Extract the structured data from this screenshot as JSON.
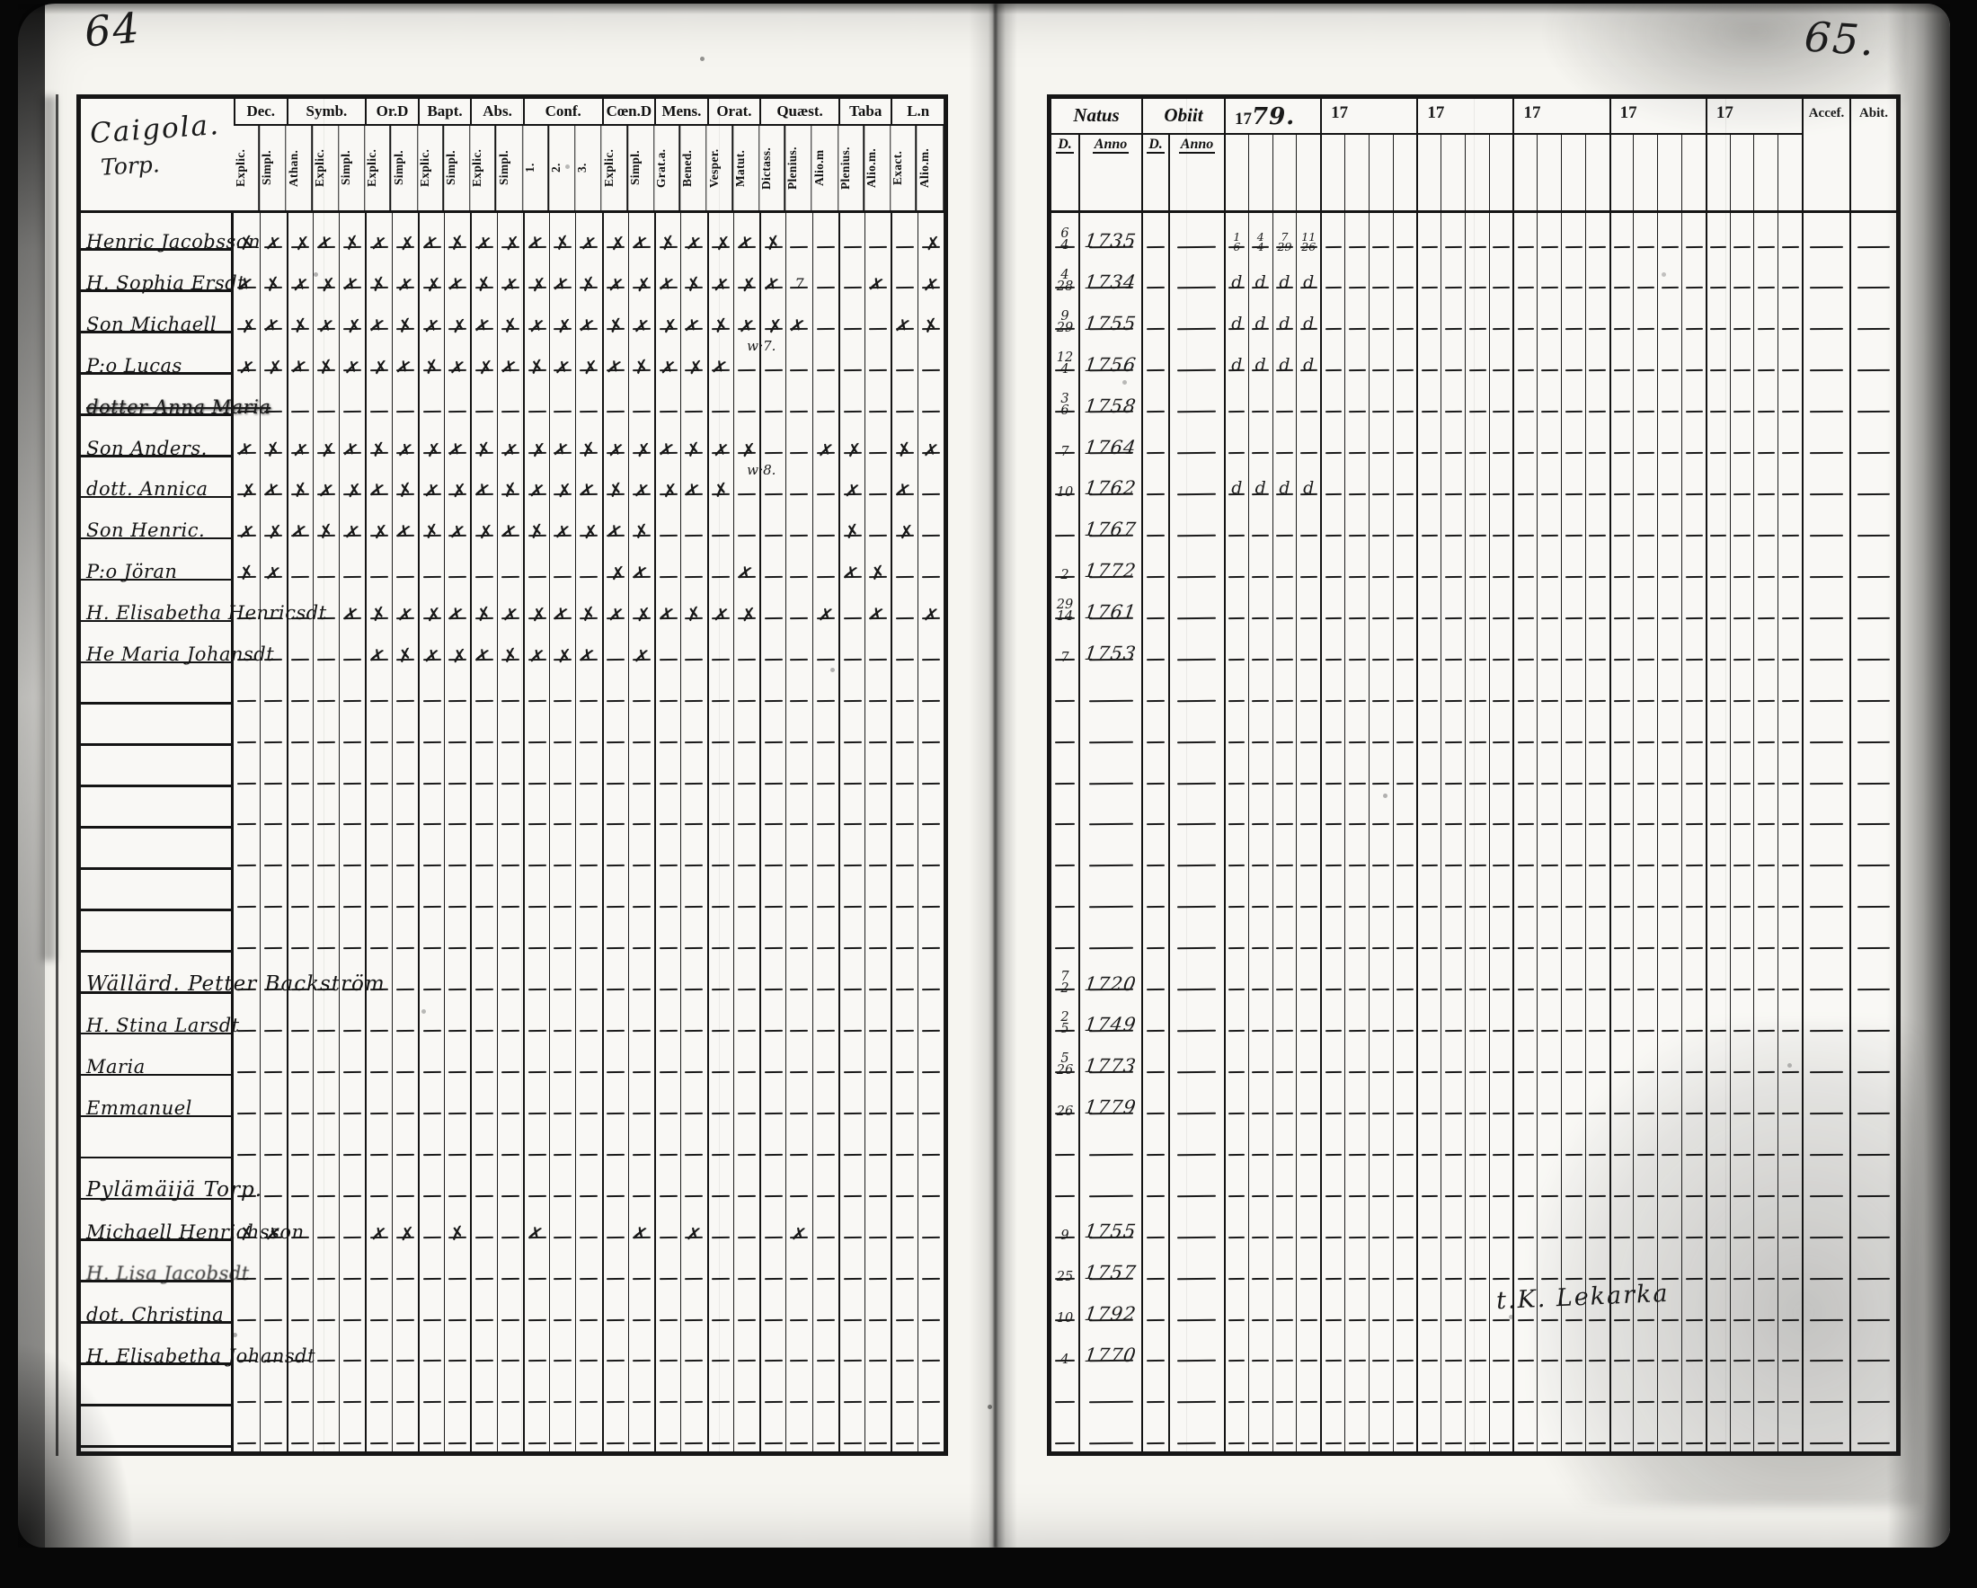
{
  "colors": {
    "ink": "#1a1a1a",
    "paper": "#f6f5f0",
    "scan_background": "#070707"
  },
  "page": {
    "left_number": "64",
    "right_number": "65."
  },
  "left_table": {
    "title_line1": "Caigola.",
    "title_line2": "Torp.",
    "mark_glyph": "✗",
    "groups": [
      {
        "label": "Dec.",
        "subs": [
          "Explic.",
          "Simpl."
        ]
      },
      {
        "label": "Symb.",
        "subs": [
          "Athan.",
          "Explic.",
          "Simpl."
        ]
      },
      {
        "label": "Or.D",
        "subs": [
          "Explic.",
          "Simpl."
        ]
      },
      {
        "label": "Bapt.",
        "subs": [
          "Explic.",
          "Simpl."
        ]
      },
      {
        "label": "Abs.",
        "subs": [
          "Explic.",
          "Simpl."
        ]
      },
      {
        "label": "Conf.",
        "subs": [
          "1.",
          "2.",
          "3."
        ]
      },
      {
        "label": "Cœn.D",
        "subs": [
          "Explic.",
          "Simpl."
        ]
      },
      {
        "label": "Mens.",
        "subs": [
          "Grat.a.",
          "Bened."
        ]
      },
      {
        "label": "Orat.",
        "subs": [
          "Vesper.",
          "Matut."
        ]
      },
      {
        "label": "Quæst.",
        "subs": [
          "Dictass.",
          "Plenius.",
          "Alio.m"
        ]
      },
      {
        "label": "Taba",
        "subs": [
          "Plenius.",
          "Alio.m."
        ]
      },
      {
        "label": "L.n",
        "subs": [
          "Exact.",
          "Alio.m."
        ]
      }
    ],
    "rows": [
      {
        "name": "Henric Jacobsson",
        "marks": "xxxxxxxxxxxxxxxxxxxxx.....x"
      },
      {
        "name": "H. Sophia Ersdt",
        "marks": "xxxxxxxxxxxxxxxxxxxxx7..x.x"
      },
      {
        "name": "Son Michaell",
        "marks": "xxxxxxxxxxxxxxxxxxxxxx...xx"
      },
      {
        "name": "P:o Lucas",
        "marks": "xxxxxxxxxxxxxxxxxxx........",
        "note": {
          "col": 20,
          "text": "w:7."
        }
      },
      {
        "name": "dotter Anna Maria",
        "marks": "...........................",
        "struck": true
      },
      {
        "name": "Son Anders.",
        "marks": "xxxxxxxxxxxxxxxxxxxx..xx.xx"
      },
      {
        "name": "dott. Annica",
        "marks": "xxxxxxxxxxxxxxxxxxx....x.x.",
        "note": {
          "col": 20,
          "text": "w:8."
        }
      },
      {
        "name": "Son Henric.",
        "marks": "xxxxxxxxxxxxxxxx.......x.x."
      },
      {
        "name": "P:o Jöran",
        "marks": "xx............xx...x...xx.."
      },
      {
        "name": "H. Elisabetha Henricsdt",
        "marks": "....xxxxxxxxxxxxxxxx..x.x.x"
      },
      {
        "name": "He Maria Johansdt",
        "marks": ".....xxxxxxxxx.x..........."
      },
      {
        "name": "",
        "marks": "..........................."
      },
      {
        "name": "",
        "marks": "..........................."
      },
      {
        "name": "",
        "marks": "..........................."
      },
      {
        "name": "",
        "marks": "..........................."
      },
      {
        "name": "",
        "marks": "..........................."
      },
      {
        "name": "",
        "marks": "..........................."
      },
      {
        "name": "",
        "marks": "..........................."
      },
      {
        "name": "Wällärd. Petter Backström",
        "marks": "...........................",
        "header": true
      },
      {
        "name": "H. Stina Larsdt",
        "marks": "..........................."
      },
      {
        "name": "Maria",
        "marks": "..........................."
      },
      {
        "name": "Emmanuel",
        "marks": "..........................."
      },
      {
        "name": "",
        "marks": "..........................."
      },
      {
        "name": "Pylämäijä Torp.",
        "marks": "...........................",
        "header": true
      },
      {
        "name": "Michaell Henrichsson",
        "marks": "xx...xx.x..x...x.x...x....."
      },
      {
        "name": "H. Lisa Jacobsdt",
        "marks": "...........................",
        "smudged": true
      },
      {
        "name": "dot. Christina",
        "marks": "..........................."
      },
      {
        "name": "H. Elisabetha Johansdt",
        "marks": "..........................."
      },
      {
        "name": "",
        "marks": "..........................."
      },
      {
        "name": "",
        "marks": "..........................."
      }
    ]
  },
  "right_table": {
    "natus_label": "Natus",
    "obiit_label": "Obiit",
    "day_label": "D.",
    "anno_label": "Anno",
    "acces_label": "Accef.",
    "abit_label": "Abit.",
    "years": [
      {
        "printed": "17",
        "hand": "79."
      },
      {
        "printed": "17",
        "hand": ""
      },
      {
        "printed": "17",
        "hand": ""
      },
      {
        "printed": "17",
        "hand": ""
      },
      {
        "printed": "17",
        "hand": ""
      },
      {
        "printed": "17",
        "hand": ""
      }
    ],
    "annotation": {
      "text": "t.K. Lekarka",
      "row": 26
    },
    "rows": [
      {
        "d": "6/4",
        "anno": "1735",
        "comm": [
          "1/6",
          "4/4",
          "7/29",
          "11/26"
        ]
      },
      {
        "d": "4/28",
        "anno": "1734",
        "comm": [
          "d",
          "d",
          "d",
          "d"
        ]
      },
      {
        "d": "9/29",
        "anno": "1755",
        "comm": [
          "d",
          "d",
          "d",
          "d"
        ]
      },
      {
        "d": "12/4",
        "anno": "1756",
        "comm": [
          "d",
          "d",
          "d",
          "d"
        ]
      },
      {
        "d": "3/6",
        "anno": "1758",
        "comm": null
      },
      {
        "d": "7",
        "anno": "1764",
        "comm": null
      },
      {
        "d": "10",
        "anno": "1762",
        "comm": [
          "d",
          "d",
          "d",
          "d"
        ]
      },
      {
        "d": "",
        "anno": "1767",
        "comm": null
      },
      {
        "d": "2",
        "anno": "1772",
        "comm": null
      },
      {
        "d": "29/14",
        "anno": "1761",
        "comm": null
      },
      {
        "d": "7",
        "anno": "1753",
        "comm": null
      },
      {
        "d": "",
        "anno": "",
        "comm": null
      },
      {
        "d": "",
        "anno": "",
        "comm": null
      },
      {
        "d": "",
        "anno": "",
        "comm": null
      },
      {
        "d": "",
        "anno": "",
        "comm": null
      },
      {
        "d": "",
        "anno": "",
        "comm": null
      },
      {
        "d": "",
        "anno": "",
        "comm": null
      },
      {
        "d": "",
        "anno": "",
        "comm": null
      },
      {
        "d": "7/2",
        "anno": "1720",
        "comm": null
      },
      {
        "d": "2/5",
        "anno": "1749",
        "comm": null
      },
      {
        "d": "5/26",
        "anno": "1773",
        "comm": null
      },
      {
        "d": "26",
        "anno": "1779",
        "comm": null
      },
      {
        "d": "",
        "anno": "",
        "comm": null
      },
      {
        "d": "",
        "anno": "",
        "comm": null
      },
      {
        "d": "9",
        "anno": "1755",
        "comm": null
      },
      {
        "d": "25",
        "anno": "1757",
        "comm": null
      },
      {
        "d": "10",
        "anno": "1792",
        "comm": null
      },
      {
        "d": "4",
        "anno": "1770",
        "comm": null
      },
      {
        "d": "",
        "anno": "",
        "comm": null
      },
      {
        "d": "",
        "anno": "",
        "comm": null
      }
    ]
  }
}
